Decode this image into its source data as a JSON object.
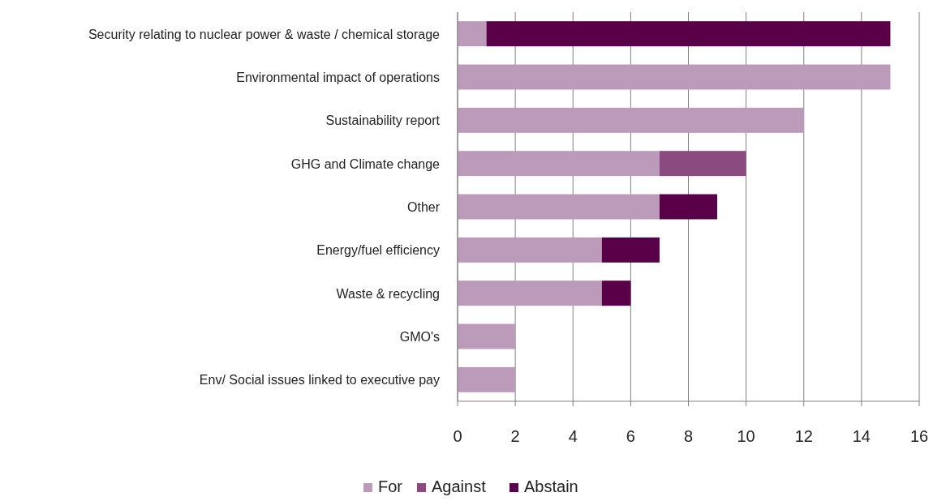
{
  "chart_data": {
    "type": "bar",
    "orientation": "horizontal",
    "stacked": true,
    "categories": [
      "Security relating to nuclear power & waste / chemical storage",
      "Environmental impact of operations",
      "Sustainability report",
      "GHG and Climate change",
      "Other",
      "Energy/fuel efficiency",
      "Waste & recycling",
      "GMO's",
      "Env/ Social issues linked to executive pay"
    ],
    "series": [
      {
        "name": "For",
        "color": "#bc9aba",
        "values": [
          1,
          15,
          12,
          7,
          7,
          5,
          5,
          2,
          2
        ]
      },
      {
        "name": "Against",
        "color": "#8b4a80",
        "values": [
          0,
          0,
          0,
          3,
          0,
          0,
          0,
          0,
          0
        ]
      },
      {
        "name": "Abstain",
        "color": "#5a0048",
        "values": [
          14,
          0,
          0,
          0,
          2,
          2,
          1,
          0,
          0
        ]
      }
    ],
    "xlim": [
      0,
      16
    ],
    "xticks": [
      0,
      2,
      4,
      6,
      8,
      10,
      12,
      14,
      16
    ],
    "grid": "x",
    "legend": "bottom"
  }
}
